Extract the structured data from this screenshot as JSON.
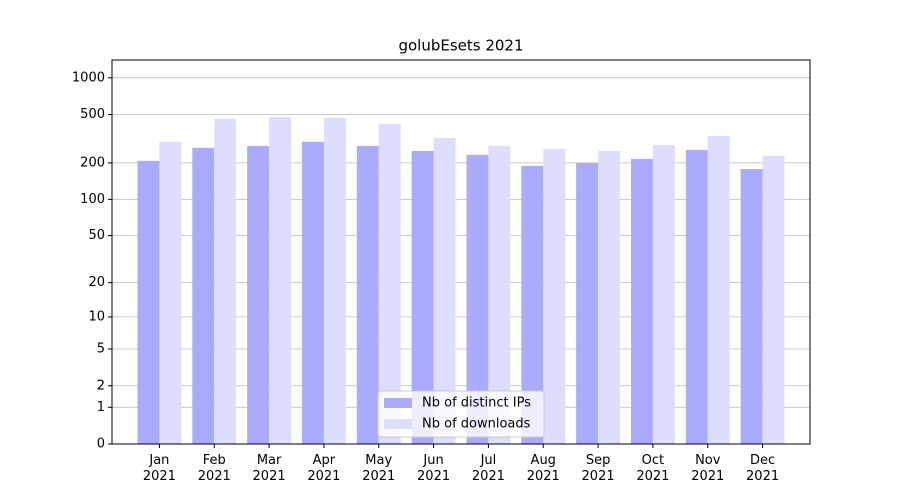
{
  "chart_data": {
    "type": "bar",
    "title": "golubEsets 2021",
    "categories": [
      "Jan\n2021",
      "Feb\n2021",
      "Mar\n2021",
      "Apr\n2021",
      "May\n2021",
      "Jun\n2021",
      "Jul\n2021",
      "Aug\n2021",
      "Sep\n2021",
      "Oct\n2021",
      "Nov\n2021",
      "Dec\n2021"
    ],
    "series": [
      {
        "name": "Nb of distinct IPs",
        "color": "#aaaaff",
        "values": [
          208,
          266,
          276,
          298,
          276,
          251,
          233,
          189,
          200,
          216,
          256,
          178
        ]
      },
      {
        "name": "Nb of downloads",
        "color": "#ddddff",
        "values": [
          298,
          461,
          478,
          469,
          419,
          321,
          276,
          261,
          251,
          282,
          334,
          229
        ]
      }
    ],
    "yscale": "log1p",
    "ylim": [
      0,
      1400
    ],
    "yticks": [
      0,
      1,
      2,
      5,
      10,
      20,
      50,
      100,
      200,
      500,
      1000
    ],
    "grid": true,
    "legend": "lower center"
  }
}
